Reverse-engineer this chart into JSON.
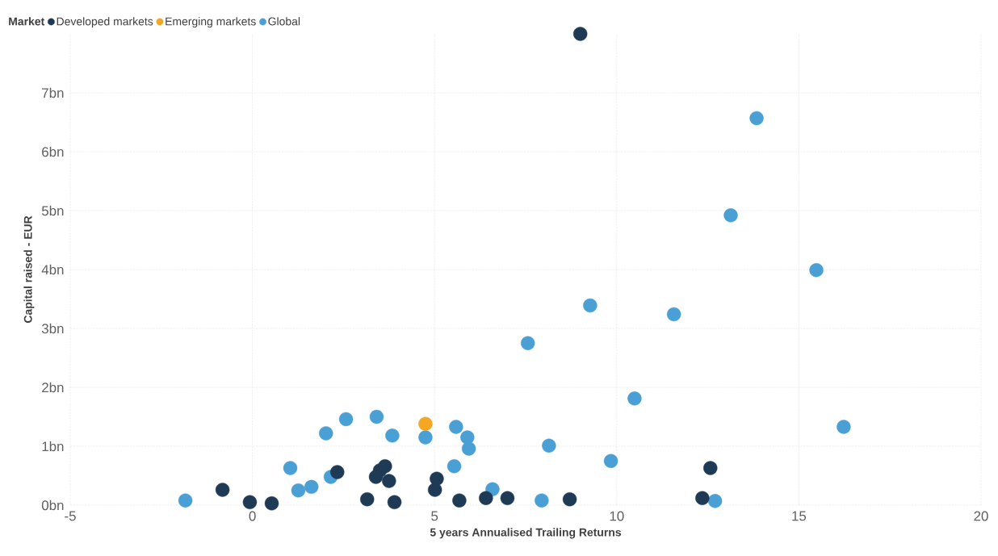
{
  "chart_data": {
    "type": "scatter",
    "xlabel": "5 years Annualised Trailing Returns",
    "ylabel": "Capital raised - EUR",
    "legend_title": "Market",
    "xlim": [
      -5,
      20
    ],
    "xticks": [
      -5,
      0,
      5,
      10,
      15,
      20
    ],
    "ylim": [
      0,
      8
    ],
    "yticks": [
      {
        "value": 0,
        "label": "0bn"
      },
      {
        "value": 1,
        "label": "1bn"
      },
      {
        "value": 2,
        "label": "2bn"
      },
      {
        "value": 3,
        "label": "3bn"
      },
      {
        "value": 4,
        "label": "4bn"
      },
      {
        "value": 5,
        "label": "5bn"
      },
      {
        "value": 6,
        "label": "6bn"
      },
      {
        "value": 7,
        "label": "7bn"
      }
    ],
    "grid": true,
    "legend": "top left",
    "series": [
      {
        "name": "Developed markets",
        "color": "#1f3a54",
        "x": [
          9.0,
          -0.82,
          -0.07,
          0.53,
          2.33,
          3.39,
          3.5,
          3.64,
          3.75,
          3.15,
          3.9,
          5.06,
          5.01,
          5.68,
          6.41,
          7.0,
          8.71,
          12.35,
          12.57
        ],
        "values": [
          8.0,
          0.26,
          0.05,
          0.03,
          0.56,
          0.48,
          0.59,
          0.66,
          0.41,
          0.1,
          0.05,
          0.45,
          0.26,
          0.08,
          0.12,
          0.12,
          0.1,
          0.12,
          0.63
        ]
      },
      {
        "name": "Emerging markets",
        "color": "#f5a623",
        "x": [
          4.75
        ],
        "values": [
          1.38
        ]
      },
      {
        "name": "Global",
        "color": "#4a9fd4",
        "x": [
          -1.84,
          1.04,
          1.26,
          1.62,
          2.02,
          2.15,
          2.57,
          3.41,
          3.84,
          4.75,
          5.59,
          5.54,
          5.9,
          5.94,
          6.59,
          7.56,
          7.94,
          8.14,
          9.27,
          9.84,
          10.49,
          11.57,
          12.7,
          13.13,
          13.84,
          15.48,
          16.23
        ],
        "values": [
          0.08,
          0.63,
          0.25,
          0.31,
          1.22,
          0.48,
          1.46,
          1.5,
          1.18,
          1.15,
          1.33,
          0.66,
          1.15,
          0.96,
          0.27,
          2.75,
          0.08,
          1.01,
          3.39,
          0.75,
          1.81,
          3.24,
          0.07,
          4.92,
          6.57,
          3.99,
          1.33
        ]
      }
    ]
  }
}
